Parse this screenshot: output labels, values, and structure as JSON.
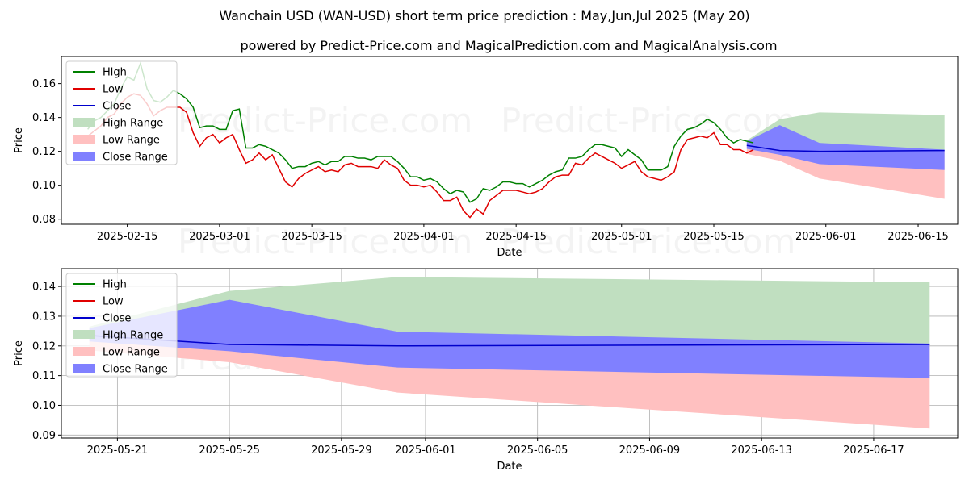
{
  "title": "Wanchain USD (WAN-USD) short term price prediction : May,Jun,Jul 2025 (May 20)",
  "subtitle": "powered by Predict-Price.com and MagicalPrediction.com and MagicalAnalysis.com",
  "watermark": "Predict-Price.com",
  "colors": {
    "high": "#008000",
    "low": "#e00000",
    "close": "#0000cc",
    "high_range": "#c0dfc0",
    "low_range": "#ffc0c0",
    "close_range": "#8080ff"
  },
  "chart_data": [
    {
      "type": "line",
      "xlabel": "Date",
      "ylabel": "Price",
      "xlim": [
        "2025-02-05",
        "2025-06-21"
      ],
      "ylim": [
        0.077,
        0.176
      ],
      "x_ticks": [
        "2025-02-15",
        "2025-03-01",
        "2025-03-15",
        "2025-04-01",
        "2025-04-15",
        "2025-05-01",
        "2025-05-15",
        "2025-06-01",
        "2025-06-15"
      ],
      "y_ticks": [
        "0.08",
        "0.10",
        "0.12",
        "0.14",
        "0.16"
      ],
      "grid": false,
      "legend_position": "top-left",
      "legend": [
        "High",
        "Low",
        "Close",
        "High Range",
        "Low Range",
        "Close Range"
      ],
      "history_start": "2025-02-09",
      "history": {
        "high": [
          0.133,
          0.138,
          0.14,
          0.144,
          0.148,
          0.157,
          0.164,
          0.162,
          0.172,
          0.157,
          0.15,
          0.149,
          0.152,
          0.156,
          0.154,
          0.151,
          0.146,
          0.134,
          0.135,
          0.135,
          0.133,
          0.133,
          0.144,
          0.145,
          0.122,
          0.122,
          0.124,
          0.123,
          0.121,
          0.119,
          0.115,
          0.11,
          0.111,
          0.111,
          0.113,
          0.114,
          0.112,
          0.114,
          0.114,
          0.117,
          0.117,
          0.116,
          0.116,
          0.115,
          0.117,
          0.117,
          0.117,
          0.114,
          0.11,
          0.105,
          0.105,
          0.103,
          0.104,
          0.102,
          0.098,
          0.095,
          0.097,
          0.096,
          0.09,
          0.092,
          0.098,
          0.097,
          0.099,
          0.102,
          0.102,
          0.101,
          0.101,
          0.099,
          0.101,
          0.103,
          0.106,
          0.108,
          0.109,
          0.116,
          0.116,
          0.117,
          0.121,
          0.124,
          0.124,
          0.123,
          0.122,
          0.117,
          0.121,
          0.118,
          0.115,
          0.109,
          0.109,
          0.109,
          0.111,
          0.123,
          0.129,
          0.133,
          0.134,
          0.136,
          0.139,
          0.137,
          0.133,
          0.128,
          0.125,
          0.127,
          0.126,
          0.125
        ],
        "low": [
          0.129,
          0.132,
          0.135,
          0.14,
          0.142,
          0.148,
          0.152,
          0.154,
          0.153,
          0.148,
          0.141,
          0.144,
          0.146,
          0.146,
          0.146,
          0.143,
          0.131,
          0.123,
          0.128,
          0.13,
          0.125,
          0.128,
          0.13,
          0.121,
          0.113,
          0.115,
          0.119,
          0.115,
          0.118,
          0.11,
          0.102,
          0.099,
          0.104,
          0.107,
          0.109,
          0.111,
          0.108,
          0.109,
          0.108,
          0.112,
          0.113,
          0.111,
          0.111,
          0.111,
          0.11,
          0.115,
          0.112,
          0.11,
          0.103,
          0.1,
          0.1,
          0.099,
          0.1,
          0.096,
          0.091,
          0.091,
          0.093,
          0.085,
          0.081,
          0.086,
          0.083,
          0.091,
          0.094,
          0.097,
          0.097,
          0.097,
          0.096,
          0.095,
          0.096,
          0.098,
          0.102,
          0.105,
          0.106,
          0.106,
          0.113,
          0.112,
          0.116,
          0.119,
          0.117,
          0.115,
          0.113,
          0.11,
          0.112,
          0.114,
          0.108,
          0.105,
          0.104,
          0.103,
          0.105,
          0.108,
          0.121,
          0.127,
          0.128,
          0.129,
          0.128,
          0.131,
          0.124,
          0.124,
          0.121,
          0.121,
          0.119,
          0.121
        ]
      },
      "forecast": {
        "dates": [
          "2025-05-20",
          "2025-05-25",
          "2025-05-31",
          "2025-06-19"
        ],
        "close": [
          0.1235,
          0.1205,
          0.12,
          0.1205
        ],
        "high_range_upper": [
          0.1265,
          0.139,
          0.143,
          0.1415
        ],
        "high_range_lower": [
          0.1235,
          0.1205,
          0.12,
          0.1205
        ],
        "low_range_upper": [
          0.1235,
          0.1205,
          0.12,
          0.1205
        ],
        "low_range_lower": [
          0.1185,
          0.1145,
          0.104,
          0.092
        ],
        "close_range_upper": [
          0.126,
          0.1355,
          0.125,
          0.121
        ],
        "close_range_lower": [
          0.1215,
          0.118,
          0.1125,
          0.109
        ]
      }
    },
    {
      "type": "line",
      "xlabel": "Date",
      "ylabel": "Price",
      "xlim": [
        "2025-05-19",
        "2025-06-20"
      ],
      "ylim": [
        0.089,
        0.146
      ],
      "x_ticks": [
        "2025-05-21",
        "2025-05-25",
        "2025-05-29",
        "2025-06-01",
        "2025-06-05",
        "2025-06-09",
        "2025-06-13",
        "2025-06-17"
      ],
      "y_ticks": [
        "0.09",
        "0.10",
        "0.11",
        "0.12",
        "0.13",
        "0.14"
      ],
      "grid": true,
      "legend_position": "top-left",
      "legend": [
        "High",
        "Low",
        "Close",
        "High Range",
        "Low Range",
        "Close Range"
      ],
      "forecast": {
        "dates": [
          "2025-05-20",
          "2025-05-25",
          "2025-05-31",
          "2025-06-19"
        ],
        "close": [
          0.1235,
          0.1205,
          0.12,
          0.1205
        ],
        "high_range_upper": [
          0.1265,
          0.1385,
          0.1432,
          0.1414
        ],
        "high_range_lower": [
          0.1235,
          0.1205,
          0.12,
          0.1205
        ],
        "low_range_upper": [
          0.1235,
          0.1205,
          0.12,
          0.1205
        ],
        "low_range_lower": [
          0.1185,
          0.1145,
          0.1043,
          0.0922
        ],
        "close_range_upper": [
          0.126,
          0.1355,
          0.1248,
          0.1208
        ],
        "close_range_lower": [
          0.1215,
          0.1182,
          0.1127,
          0.1092
        ]
      }
    }
  ]
}
